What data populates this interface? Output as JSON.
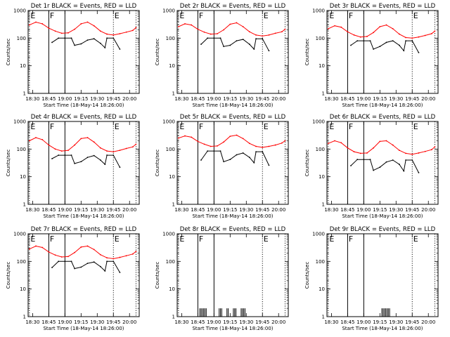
{
  "colors": {
    "events": "#000000",
    "lld": "#ff0000",
    "axes": "#000000",
    "background": "#ffffff"
  },
  "shared": {
    "type": "line",
    "xlabel": "Start Time (18-May-14 18:26:00)",
    "ylabel": "Counts/sec",
    "yscale": "log",
    "ylim": [
      1,
      1000
    ],
    "yticks": [
      1,
      10,
      100,
      1000
    ],
    "ytick_labels": [
      "1",
      "10",
      "100",
      "1000"
    ],
    "xlim": [
      18.43,
      20.15
    ],
    "xticks": [
      18.5,
      18.75,
      19.0,
      19.25,
      19.5,
      19.75,
      20.0
    ],
    "xtick_labels": [
      "18:30",
      "18:45",
      "19:00",
      "19:15",
      "19:30",
      "19:45",
      "20:00"
    ],
    "marker_lines": [
      {
        "x": 18.45,
        "label": "E",
        "style": "dotted"
      },
      {
        "x": 18.75,
        "label": "F",
        "style": "solid"
      },
      {
        "x": 19.0,
        "label": "",
        "style": "solid"
      },
      {
        "x": 19.75,
        "label": "E",
        "style": "dotted"
      },
      {
        "x": 20.1,
        "label": "",
        "style": "dotted"
      }
    ]
  },
  "chart_data": [
    {
      "title": "Det 1r BLACK = Events, RED = LLD",
      "series": [
        {
          "name": "BLACK = Events",
          "x": [
            18.8,
            18.9,
            19.0,
            19.1,
            19.15,
            19.25,
            19.35,
            19.45,
            19.55,
            19.62,
            19.65,
            19.75,
            19.85
          ],
          "y": [
            70,
            100,
            100,
            100,
            55,
            62,
            85,
            95,
            65,
            45,
            100,
            100,
            40
          ]
        },
        {
          "name": "RED = LLD",
          "x": [
            18.45,
            18.55,
            18.65,
            18.75,
            18.85,
            18.95,
            19.05,
            19.15,
            19.25,
            19.35,
            19.45,
            19.55,
            19.65,
            19.75,
            19.85,
            19.95,
            20.05,
            20.1
          ],
          "y": [
            300,
            380,
            330,
            230,
            180,
            150,
            155,
            210,
            330,
            380,
            280,
            180,
            140,
            130,
            145,
            165,
            190,
            240
          ]
        }
      ]
    },
    {
      "title": "Det 2r BLACK = Events, RED = LLD",
      "series": [
        {
          "name": "BLACK = Events",
          "x": [
            18.8,
            18.9,
            19.0,
            19.1,
            19.15,
            19.25,
            19.35,
            19.45,
            19.55,
            19.62,
            19.65,
            19.75,
            19.85
          ],
          "y": [
            60,
            100,
            100,
            100,
            50,
            55,
            80,
            90,
            60,
            40,
            95,
            95,
            35
          ]
        },
        {
          "name": "RED = LLD",
          "x": [
            18.45,
            18.55,
            18.65,
            18.75,
            18.85,
            18.95,
            19.05,
            19.15,
            19.25,
            19.35,
            19.45,
            19.55,
            19.65,
            19.75,
            19.85,
            19.95,
            20.05,
            20.1
          ],
          "y": [
            260,
            330,
            300,
            210,
            165,
            140,
            145,
            200,
            320,
            360,
            260,
            170,
            130,
            120,
            130,
            150,
            170,
            210
          ]
        }
      ]
    },
    {
      "title": "Det 3r BLACK = Events, RED = LLD",
      "series": [
        {
          "name": "BLACK = Events",
          "x": [
            18.8,
            18.9,
            19.0,
            19.1,
            19.15,
            19.25,
            19.35,
            19.45,
            19.55,
            19.62,
            19.65,
            19.75,
            19.85
          ],
          "y": [
            55,
            80,
            80,
            80,
            40,
            50,
            70,
            80,
            55,
            35,
            80,
            80,
            30
          ]
        },
        {
          "name": "RED = LLD",
          "x": [
            18.45,
            18.55,
            18.65,
            18.75,
            18.85,
            18.95,
            19.05,
            19.15,
            19.25,
            19.35,
            19.45,
            19.55,
            19.65,
            19.75,
            19.85,
            19.95,
            20.05,
            20.1
          ],
          "y": [
            220,
            280,
            250,
            170,
            130,
            110,
            115,
            160,
            260,
            300,
            220,
            140,
            105,
            100,
            110,
            125,
            145,
            180
          ]
        }
      ]
    },
    {
      "title": "Det 4r BLACK = Events, RED = LLD",
      "series": [
        {
          "name": "BLACK = Events",
          "x": [
            18.8,
            18.9,
            19.0,
            19.1,
            19.15,
            19.25,
            19.35,
            19.45,
            19.55,
            19.62,
            19.65,
            19.75,
            19.85
          ],
          "y": [
            45,
            60,
            60,
            60,
            30,
            35,
            50,
            58,
            40,
            28,
            60,
            60,
            22
          ]
        },
        {
          "name": "RED = LLD",
          "x": [
            18.45,
            18.55,
            18.65,
            18.75,
            18.85,
            18.95,
            19.05,
            19.15,
            19.25,
            19.35,
            19.45,
            19.55,
            19.65,
            19.75,
            19.85,
            19.95,
            20.05,
            20.1
          ],
          "y": [
            200,
            260,
            220,
            140,
            100,
            85,
            90,
            140,
            240,
            260,
            180,
            110,
            85,
            80,
            90,
            105,
            120,
            150
          ]
        }
      ]
    },
    {
      "title": "Det 5r BLACK = Events, RED = LLD",
      "series": [
        {
          "name": "BLACK = Events",
          "x": [
            18.8,
            18.9,
            19.0,
            19.1,
            19.15,
            19.25,
            19.35,
            19.45,
            19.55,
            19.62,
            19.65,
            19.75,
            19.85
          ],
          "y": [
            40,
            85,
            85,
            85,
            35,
            42,
            62,
            72,
            50,
            32,
            80,
            80,
            26
          ]
        },
        {
          "name": "RED = LLD",
          "x": [
            18.45,
            18.55,
            18.65,
            18.75,
            18.85,
            18.95,
            19.05,
            19.15,
            19.25,
            19.35,
            19.45,
            19.55,
            19.65,
            19.75,
            19.85,
            19.95,
            20.05,
            20.1
          ],
          "y": [
            250,
            300,
            270,
            190,
            150,
            125,
            130,
            180,
            290,
            320,
            240,
            160,
            125,
            115,
            125,
            140,
            165,
            200
          ]
        }
      ]
    },
    {
      "title": "Det 6r BLACK = Events, RED = LLD",
      "series": [
        {
          "name": "BLACK = Events",
          "x": [
            18.8,
            18.9,
            19.0,
            19.1,
            19.15,
            19.25,
            19.35,
            19.45,
            19.55,
            19.62,
            19.65,
            19.75,
            19.85
          ],
          "y": [
            25,
            42,
            42,
            42,
            17,
            22,
            34,
            40,
            28,
            16,
            40,
            40,
            14
          ]
        },
        {
          "name": "RED = LLD",
          "x": [
            18.45,
            18.55,
            18.65,
            18.75,
            18.85,
            18.95,
            19.05,
            19.15,
            19.25,
            19.35,
            19.45,
            19.55,
            19.65,
            19.75,
            19.85,
            19.95,
            20.05,
            20.1
          ],
          "y": [
            160,
            200,
            170,
            110,
            80,
            70,
            72,
            110,
            190,
            200,
            140,
            90,
            70,
            65,
            72,
            82,
            95,
            120
          ]
        }
      ]
    },
    {
      "title": "Det 7r BLACK = Events, RED = LLD",
      "series": [
        {
          "name": "BLACK = Events",
          "x": [
            18.8,
            18.9,
            19.0,
            19.1,
            19.15,
            19.25,
            19.35,
            19.45,
            19.55,
            19.62,
            19.65,
            19.75,
            19.85
          ],
          "y": [
            60,
            100,
            100,
            100,
            55,
            62,
            85,
            95,
            65,
            45,
            100,
            100,
            40
          ]
        },
        {
          "name": "RED = LLD",
          "x": [
            18.45,
            18.55,
            18.65,
            18.75,
            18.85,
            18.95,
            19.05,
            19.15,
            19.25,
            19.35,
            19.45,
            19.55,
            19.65,
            19.75,
            19.85,
            19.95,
            20.05,
            20.1
          ],
          "y": [
            280,
            360,
            320,
            220,
            170,
            145,
            150,
            210,
            330,
            360,
            270,
            175,
            135,
            125,
            140,
            160,
            185,
            230
          ]
        }
      ]
    },
    {
      "title": "Det 8r BLACK = Events, RED = LLD",
      "series": [
        {
          "name": "BLACK = Events",
          "spikes": true,
          "x": [
            18.78,
            18.8,
            18.82,
            18.84,
            18.86,
            18.88,
            19.08,
            19.1,
            19.12,
            19.2,
            19.22,
            19.3,
            19.32,
            19.34,
            19.42,
            19.44,
            19.46,
            19.48
          ],
          "y": [
            2,
            2,
            2,
            2,
            2,
            2,
            2,
            2,
            2,
            2,
            2,
            2,
            2,
            2,
            2,
            2,
            2,
            2
          ]
        }
      ]
    },
    {
      "title": "Det 9r BLACK = Events, RED = LLD",
      "series": [
        {
          "name": "BLACK = Events",
          "spikes": true,
          "x": [
            19.28,
            19.3,
            19.32,
            19.34,
            19.36,
            19.38,
            19.4
          ],
          "y": [
            2,
            2,
            2,
            2,
            2,
            2,
            2
          ]
        }
      ]
    }
  ]
}
